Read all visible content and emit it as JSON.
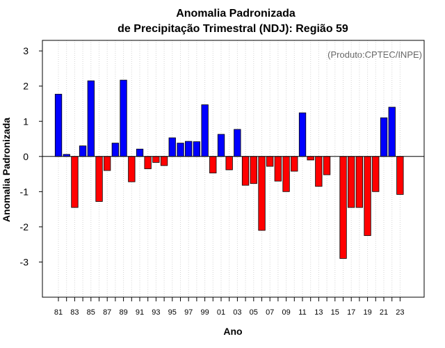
{
  "chart_data": {
    "type": "bar",
    "title": "Anomalia Padronizada",
    "subtitle": "de Precipitação Trimestral (NDJ): Região 59",
    "xlabel": "Ano",
    "ylabel": "Anomalia Padronizada",
    "credit": "(Produto:CPTEC/INPE)",
    "ylim": [
      -4,
      3.3
    ],
    "yticks": [
      "-3",
      "-2",
      "-1",
      "0",
      "1",
      "2",
      "3"
    ],
    "xtick_labels": [
      "81",
      "83",
      "85",
      "87",
      "89",
      "91",
      "93",
      "95",
      "97",
      "99",
      "01",
      "03",
      "05",
      "07",
      "09",
      "11",
      "13",
      "15",
      "17",
      "19",
      "21",
      "23"
    ],
    "categories": [
      "1981",
      "1982",
      "1983",
      "1984",
      "1985",
      "1986",
      "1987",
      "1988",
      "1989",
      "1990",
      "1991",
      "1992",
      "1993",
      "1994",
      "1995",
      "1996",
      "1997",
      "1998",
      "1999",
      "2000",
      "2001",
      "2002",
      "2003",
      "2004",
      "2005",
      "2006",
      "2007",
      "2008",
      "2009",
      "2010",
      "2011",
      "2012",
      "2013",
      "2014",
      "2015",
      "2016",
      "2017",
      "2018",
      "2019",
      "2020",
      "2021",
      "2022",
      "2023"
    ],
    "values": [
      1.77,
      0.06,
      -1.45,
      0.3,
      2.15,
      -1.28,
      -0.4,
      0.38,
      2.17,
      -0.72,
      0.21,
      -0.35,
      -0.17,
      -0.26,
      0.53,
      0.38,
      0.43,
      0.42,
      1.47,
      -0.47,
      0.63,
      -0.38,
      0.77,
      -0.82,
      -0.77,
      -2.1,
      -0.28,
      -0.7,
      -1.0,
      -0.42,
      1.24,
      -0.1,
      -0.85,
      -0.52,
      0.0,
      -2.9,
      -1.45,
      -1.45,
      -2.25,
      -1.0,
      1.1,
      1.4,
      -1.08
    ],
    "colors": {
      "positive": "#0000ff",
      "negative": "#ff0000",
      "grid": "#d3d3d3"
    },
    "grid": true
  }
}
